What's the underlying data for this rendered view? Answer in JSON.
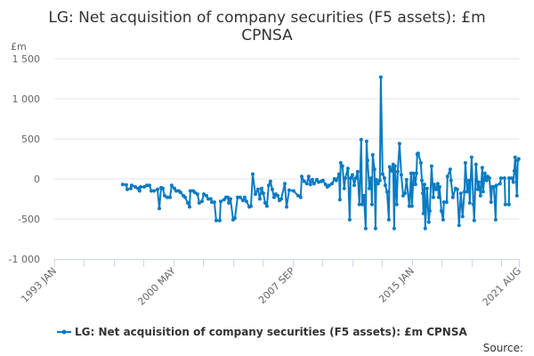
{
  "chart_data": {
    "type": "line",
    "title_line1": "LG: Net acquisition of company securities (F5 assets): £m",
    "title_line2": "CPNSA",
    "ylabel": "£m",
    "ylim": [
      -1000,
      1500
    ],
    "yticks": [
      1500,
      1000,
      500,
      0,
      -500,
      -1000
    ],
    "ytick_labels": [
      "1 500",
      "1 000",
      "500",
      "0",
      "-500",
      "-1 000"
    ],
    "xlim": [
      1993.0,
      2021.58
    ],
    "xtick_step_years": 1.8333,
    "xtick_labels": [
      {
        "x": 1993.0,
        "label": "1993 JAN"
      },
      {
        "x": 2000.33,
        "label": "2000 MAY"
      },
      {
        "x": 2007.67,
        "label": "2007 SEP"
      },
      {
        "x": 2015.0,
        "label": "2015 JAN"
      },
      {
        "x": 2021.58,
        "label": "2021 AUG"
      }
    ],
    "grid": true,
    "legend_position": "bottom",
    "series": [
      {
        "name": "LG: Net acquisition of company securities (F5 assets): £m CPNSA",
        "color": "#0a7bc2",
        "points": [
          [
            1997.21,
            -70
          ],
          [
            1997.43,
            -75
          ],
          [
            1997.49,
            -130
          ],
          [
            1997.71,
            -120
          ],
          [
            1997.76,
            -80
          ],
          [
            1997.98,
            -100
          ],
          [
            1998.15,
            -120
          ],
          [
            1998.25,
            -150
          ],
          [
            1998.31,
            -100
          ],
          [
            1998.53,
            -100
          ],
          [
            1998.69,
            -80
          ],
          [
            1998.86,
            -80
          ],
          [
            1998.97,
            -150
          ],
          [
            1999.13,
            -150
          ],
          [
            1999.35,
            -130
          ],
          [
            1999.46,
            -370
          ],
          [
            1999.57,
            -110
          ],
          [
            1999.68,
            -120
          ],
          [
            1999.79,
            -210
          ],
          [
            1999.95,
            -230
          ],
          [
            2000.12,
            -230
          ],
          [
            2000.22,
            -80
          ],
          [
            2000.39,
            -120
          ],
          [
            2000.5,
            -150
          ],
          [
            2000.66,
            -150
          ],
          [
            2000.77,
            -170
          ],
          [
            2000.94,
            -210
          ],
          [
            2001.05,
            -230
          ],
          [
            2001.21,
            -300
          ],
          [
            2001.32,
            -350
          ],
          [
            2001.37,
            -150
          ],
          [
            2001.54,
            -150
          ],
          [
            2001.65,
            -170
          ],
          [
            2001.81,
            -190
          ],
          [
            2001.92,
            -300
          ],
          [
            2002.09,
            -280
          ],
          [
            2002.2,
            -190
          ],
          [
            2002.36,
            -210
          ],
          [
            2002.47,
            -250
          ],
          [
            2002.63,
            -250
          ],
          [
            2002.69,
            -290
          ],
          [
            2002.85,
            -290
          ],
          [
            2002.96,
            -520
          ],
          [
            2003.18,
            -520
          ],
          [
            2003.24,
            -280
          ],
          [
            2003.45,
            -260
          ],
          [
            2003.56,
            -230
          ],
          [
            2003.67,
            -230
          ],
          [
            2003.73,
            -300
          ],
          [
            2003.84,
            -250
          ],
          [
            2004.0,
            -510
          ],
          [
            2004.11,
            -490
          ],
          [
            2004.28,
            -230
          ],
          [
            2004.44,
            -230
          ],
          [
            2004.6,
            -270
          ],
          [
            2004.71,
            -230
          ],
          [
            2004.82,
            -280
          ],
          [
            2004.99,
            -350
          ],
          [
            2005.1,
            -340
          ],
          [
            2005.21,
            60
          ],
          [
            2005.37,
            -190
          ],
          [
            2005.53,
            -130
          ],
          [
            2005.64,
            -250
          ],
          [
            2005.75,
            -120
          ],
          [
            2005.86,
            -180
          ],
          [
            2005.97,
            -300
          ],
          [
            2006.08,
            -340
          ],
          [
            2006.19,
            -80
          ],
          [
            2006.3,
            -30
          ],
          [
            2006.41,
            -130
          ],
          [
            2006.52,
            -230
          ],
          [
            2006.63,
            -190
          ],
          [
            2006.74,
            -210
          ],
          [
            2006.85,
            -270
          ],
          [
            2006.96,
            -250
          ],
          [
            2007.18,
            -60
          ],
          [
            2007.29,
            -350
          ],
          [
            2007.45,
            -140
          ],
          [
            2007.72,
            -150
          ],
          [
            2008.0,
            -210
          ],
          [
            2008.16,
            -230
          ],
          [
            2008.22,
            30
          ],
          [
            2008.38,
            -30
          ],
          [
            2008.54,
            -60
          ],
          [
            2008.65,
            30
          ],
          [
            2008.76,
            -70
          ],
          [
            2008.87,
            -10
          ],
          [
            2008.98,
            -60
          ],
          [
            2009.15,
            -10
          ],
          [
            2009.26,
            -40
          ],
          [
            2009.42,
            -30
          ],
          [
            2009.53,
            -20
          ],
          [
            2009.69,
            -70
          ],
          [
            2009.8,
            -100
          ],
          [
            2009.91,
            -80
          ],
          [
            2010.08,
            -60
          ],
          [
            2010.24,
            0
          ],
          [
            2010.35,
            -20
          ],
          [
            2010.52,
            60
          ],
          [
            2010.57,
            -260
          ],
          [
            2010.62,
            200
          ],
          [
            2010.73,
            160
          ],
          [
            2010.84,
            -120
          ],
          [
            2010.9,
            10
          ],
          [
            2011.06,
            130
          ],
          [
            2011.17,
            -510
          ],
          [
            2011.23,
            10
          ],
          [
            2011.34,
            50
          ],
          [
            2011.45,
            -80
          ],
          [
            2011.55,
            10
          ],
          [
            2011.66,
            90
          ],
          [
            2011.77,
            -320
          ],
          [
            2011.88,
            490
          ],
          [
            2011.94,
            -320
          ],
          [
            2012.05,
            -210
          ],
          [
            2012.16,
            -620
          ],
          [
            2012.21,
            470
          ],
          [
            2012.27,
            230
          ],
          [
            2012.38,
            -120
          ],
          [
            2012.49,
            10
          ],
          [
            2012.54,
            -320
          ],
          [
            2012.59,
            300
          ],
          [
            2012.7,
            120
          ],
          [
            2012.76,
            -620
          ],
          [
            2012.81,
            -10
          ],
          [
            2012.92,
            -60
          ],
          [
            2013.03,
            -20
          ],
          [
            2013.09,
            1270
          ],
          [
            2013.2,
            60
          ],
          [
            2013.31,
            10
          ],
          [
            2013.36,
            -80
          ],
          [
            2013.47,
            -160
          ],
          [
            2013.58,
            -510
          ],
          [
            2013.63,
            150
          ],
          [
            2013.74,
            100
          ],
          [
            2013.85,
            180
          ],
          [
            2013.91,
            -620
          ],
          [
            2013.96,
            160
          ],
          [
            2014.07,
            -320
          ],
          [
            2014.13,
            90
          ],
          [
            2014.24,
            440
          ],
          [
            2014.35,
            50
          ],
          [
            2014.46,
            -210
          ],
          [
            2014.57,
            -180
          ],
          [
            2014.67,
            -10
          ],
          [
            2014.84,
            -340
          ],
          [
            2014.95,
            70
          ],
          [
            2015.0,
            -340
          ],
          [
            2015.11,
            70
          ],
          [
            2015.22,
            -70
          ],
          [
            2015.28,
            70
          ],
          [
            2015.33,
            310
          ],
          [
            2015.39,
            320
          ],
          [
            2015.55,
            200
          ],
          [
            2015.61,
            -20
          ],
          [
            2015.67,
            -180
          ],
          [
            2015.71,
            -430
          ],
          [
            2015.77,
            -70
          ],
          [
            2015.82,
            -620
          ],
          [
            2015.93,
            -120
          ],
          [
            2016.04,
            -540
          ],
          [
            2016.1,
            -400
          ],
          [
            2016.21,
            160
          ],
          [
            2016.32,
            -230
          ],
          [
            2016.37,
            -70
          ],
          [
            2016.48,
            -130
          ],
          [
            2016.59,
            -60
          ],
          [
            2016.65,
            -230
          ],
          [
            2016.7,
            -100
          ],
          [
            2016.81,
            -400
          ],
          [
            2016.92,
            -510
          ],
          [
            2016.97,
            -290
          ],
          [
            2017.14,
            -290
          ],
          [
            2017.19,
            30
          ],
          [
            2017.36,
            120
          ],
          [
            2017.41,
            -20
          ],
          [
            2017.52,
            -230
          ],
          [
            2017.68,
            -120
          ],
          [
            2017.79,
            -130
          ],
          [
            2017.9,
            -580
          ],
          [
            2018.01,
            -180
          ],
          [
            2018.12,
            -470
          ],
          [
            2018.23,
            -160
          ],
          [
            2018.29,
            200
          ],
          [
            2018.4,
            -160
          ],
          [
            2018.51,
            -20
          ],
          [
            2018.56,
            -300
          ],
          [
            2018.67,
            270
          ],
          [
            2018.78,
            -320
          ],
          [
            2018.83,
            -520
          ],
          [
            2018.94,
            180
          ],
          [
            2019.05,
            -130
          ],
          [
            2019.11,
            -40
          ],
          [
            2019.22,
            -210
          ],
          [
            2019.33,
            140
          ],
          [
            2019.38,
            -160
          ],
          [
            2019.49,
            70
          ],
          [
            2019.6,
            -20
          ],
          [
            2019.66,
            30
          ],
          [
            2019.77,
            10
          ],
          [
            2019.87,
            -290
          ],
          [
            2019.93,
            -100
          ],
          [
            2020.04,
            -100
          ],
          [
            2020.15,
            -510
          ],
          [
            2020.2,
            -80
          ],
          [
            2020.42,
            -60
          ],
          [
            2020.48,
            10
          ],
          [
            2020.7,
            10
          ],
          [
            2020.75,
            -320
          ],
          [
            2020.97,
            -320
          ],
          [
            2020.97,
            10
          ],
          [
            2021.13,
            10
          ],
          [
            2021.24,
            -40
          ],
          [
            2021.3,
            100
          ],
          [
            2021.35,
            270
          ],
          [
            2021.46,
            -210
          ],
          [
            2021.51,
            230
          ],
          [
            2021.57,
            250
          ]
        ]
      }
    ],
    "source_label": "Source:"
  }
}
